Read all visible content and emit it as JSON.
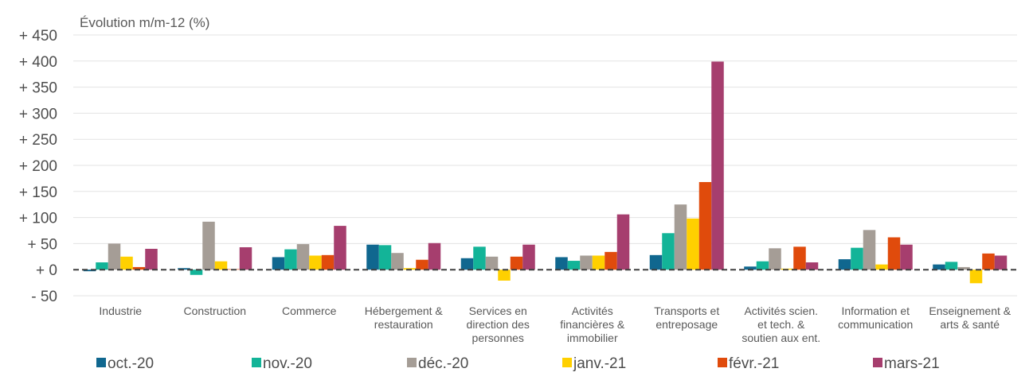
{
  "chart_data": {
    "type": "bar",
    "ylabel": "Évolution m/m-12 (%)",
    "ylim": [
      -50,
      450
    ],
    "yticks": [
      {
        "value": 450,
        "label": "+ 450"
      },
      {
        "value": 400,
        "label": "+ 400"
      },
      {
        "value": 350,
        "label": "+ 350"
      },
      {
        "value": 300,
        "label": "+ 300"
      },
      {
        "value": 250,
        "label": "+ 250"
      },
      {
        "value": 200,
        "label": "+ 200"
      },
      {
        "value": 150,
        "label": "+ 150"
      },
      {
        "value": 100,
        "label": "+ 100"
      },
      {
        "value": 50,
        "label": "+ 50"
      },
      {
        "value": 0,
        "label": "+ 0"
      },
      {
        "value": -50,
        "label": "- 50"
      }
    ],
    "grid": true,
    "legend_position": "bottom",
    "categories": [
      [
        "Industrie"
      ],
      [
        "Construction"
      ],
      [
        "Commerce"
      ],
      [
        "Hébergement &",
        "restauration"
      ],
      [
        "Services en",
        "direction des",
        "personnes"
      ],
      [
        "Activités",
        "financières &",
        "immobilier"
      ],
      [
        "Transports et",
        "entreposage"
      ],
      [
        "Activités scien.",
        "et tech. &",
        "soutien aux ent."
      ],
      [
        "Information et",
        "communication"
      ],
      [
        "Enseignement &",
        "arts & santé"
      ]
    ],
    "series": [
      {
        "name": "oct.-20",
        "color": "#10678f",
        "values": [
          -3,
          3,
          24,
          48,
          22,
          24,
          28,
          6,
          20,
          10
        ]
      },
      {
        "name": "nov.-20",
        "color": "#13b498",
        "values": [
          14,
          -10,
          39,
          47,
          44,
          17,
          70,
          16,
          42,
          15
        ]
      },
      {
        "name": "déc.-20",
        "color": "#a59d96",
        "values": [
          50,
          92,
          49,
          32,
          25,
          27,
          125,
          41,
          76,
          5
        ]
      },
      {
        "name": "janv.-21",
        "color": "#ffd000",
        "values": [
          25,
          16,
          27,
          3,
          -21,
          27,
          98,
          2,
          10,
          -26
        ]
      },
      {
        "name": "févr.-21",
        "color": "#e04b0c",
        "values": [
          5,
          1,
          28,
          19,
          25,
          34,
          168,
          44,
          62,
          31
        ]
      },
      {
        "name": "mars-21",
        "color": "#a63e6e",
        "values": [
          40,
          43,
          84,
          51,
          48,
          106,
          399,
          14,
          48,
          27
        ]
      }
    ]
  }
}
